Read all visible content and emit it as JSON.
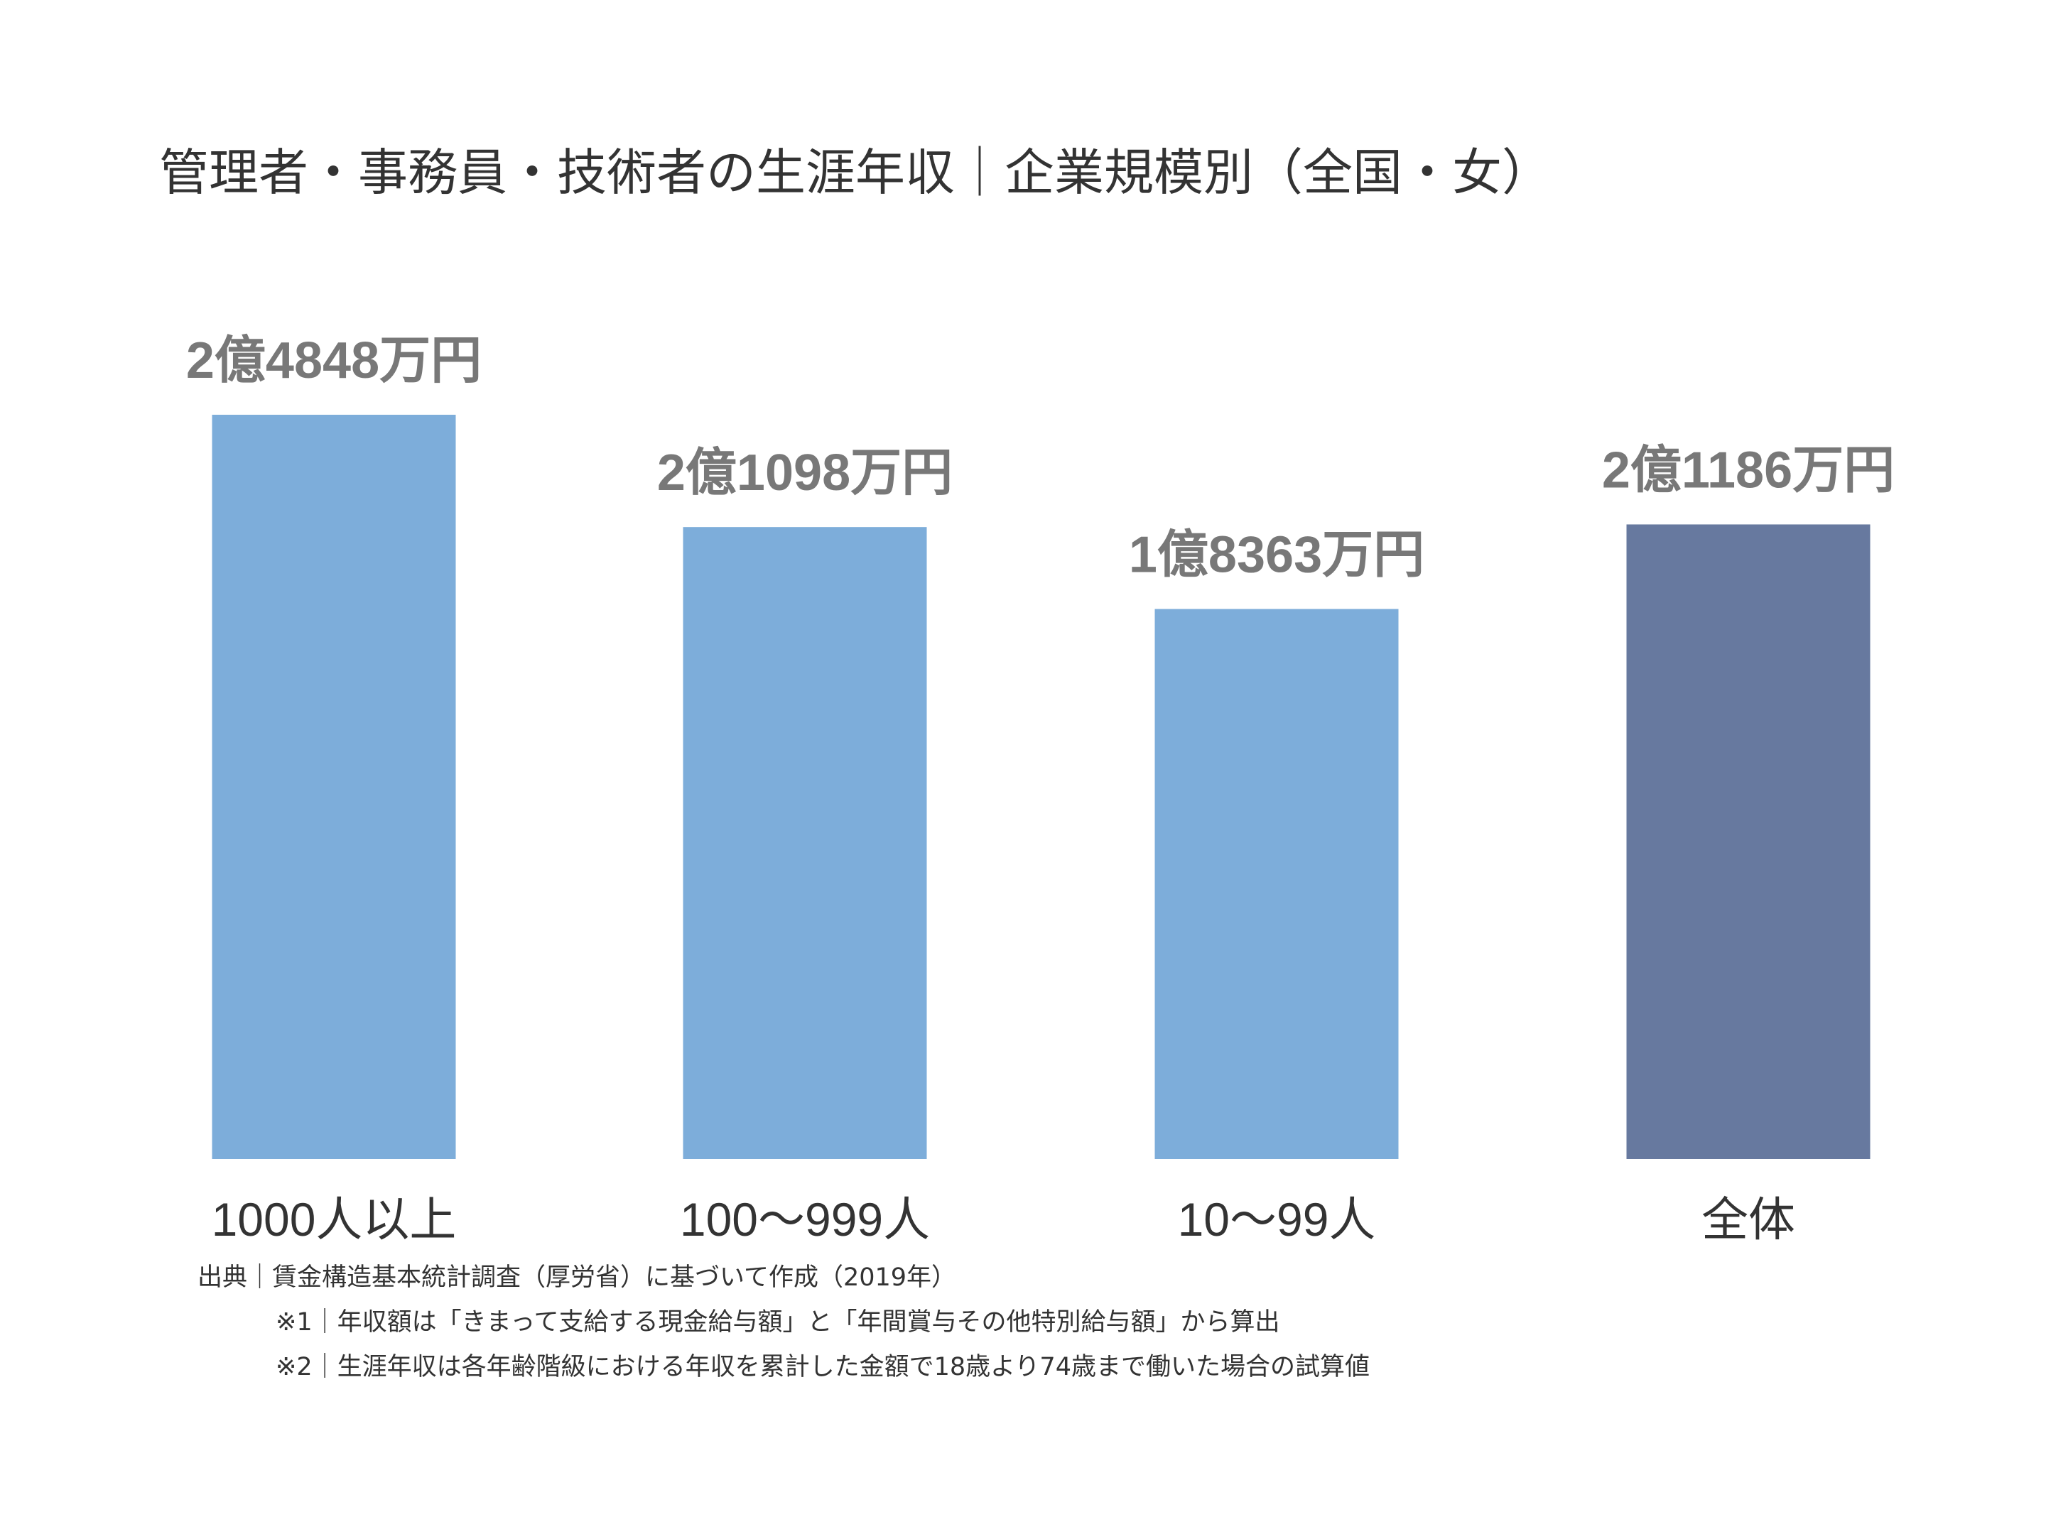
{
  "chart_data": {
    "type": "bar",
    "title": "管理者・事務員・技術者の生涯年収｜企業規模別（全国・女）",
    "categories": [
      "1000人以上",
      "100〜999人",
      "10〜99人",
      "全体"
    ],
    "values": [
      24848,
      21098,
      18363,
      21186
    ],
    "value_unit": "万円",
    "data_labels": [
      "2億4848万円",
      "2億1098万円",
      "1億8363万円",
      "2億1186万円"
    ],
    "colors": [
      "#7dadda",
      "#7dadda",
      "#7dadda",
      "#67799f"
    ],
    "ylim": [
      0,
      24848
    ],
    "grid": false,
    "legend": "none",
    "xlabel": "",
    "ylabel": ""
  },
  "footnotes": [
    "出典｜賃金構造基本統計調査（厚労省）に基づいて作成（2019年）",
    "※1｜年収額は「きまって支給する現金給与額」と「年間賞与その他特別給与額」から算出",
    "※2｜生涯年収は各年齢階級における年収を累計した金額で18歳より74歳まで働いた場合の試算値"
  ],
  "colors": {
    "bar": "#7dadda",
    "total_bar": "#67799f",
    "data_label": "#787878",
    "text": "#333333"
  }
}
